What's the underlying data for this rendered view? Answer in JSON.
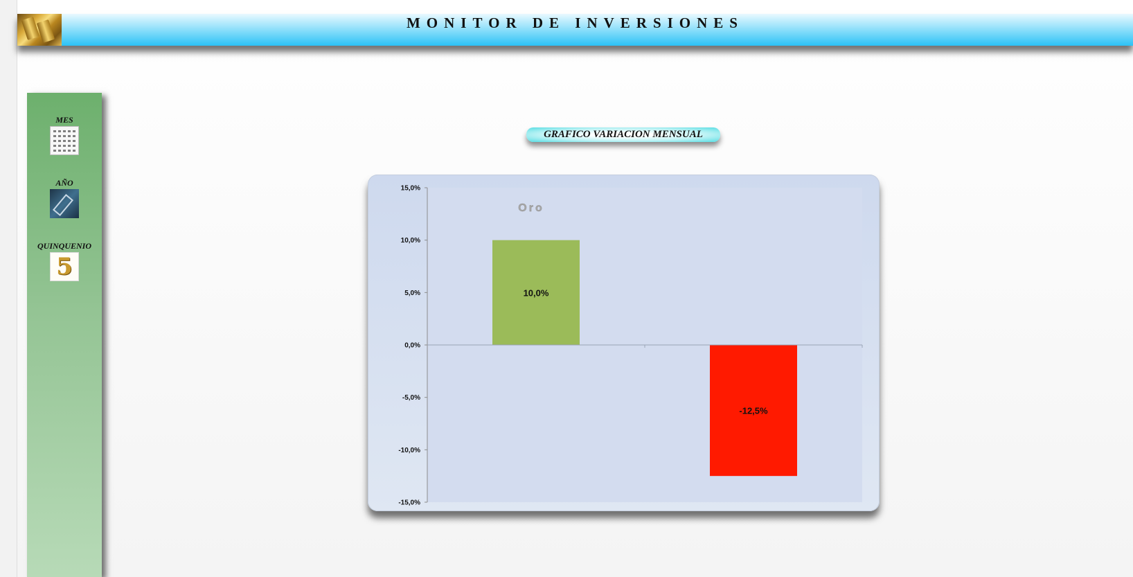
{
  "header": {
    "title": "MONITOR DE INVERSIONES",
    "logo_icon": "gold-bars-icon"
  },
  "sidebar": {
    "items": [
      {
        "label": "MES",
        "icon": "calendar-icon"
      },
      {
        "label": "AÑO",
        "icon": "chart-trend-icon"
      },
      {
        "label": "QUINQUENIO",
        "icon": "number-five-icon"
      }
    ]
  },
  "main": {
    "chart_heading": "GRAFICO VARIACION MENSUAL"
  },
  "chart_data": {
    "type": "bar",
    "title": "Oro",
    "categories": [
      "",
      ""
    ],
    "values": [
      10.0,
      -12.5
    ],
    "data_labels": [
      "10,0%",
      "-12,5%"
    ],
    "colors": [
      "#9bbb59",
      "#ff1a00"
    ],
    "ylim": [
      -15,
      15
    ],
    "yticks": [
      15,
      10,
      5,
      0,
      -5,
      -10,
      -15
    ],
    "ytick_labels": [
      "15,0%",
      "10,0%",
      "5,0%",
      "0,0%",
      "-5,0%",
      "-10,0%",
      "-15,0%"
    ],
    "grid": false,
    "legend": "none",
    "xlabel": "",
    "ylabel": ""
  }
}
